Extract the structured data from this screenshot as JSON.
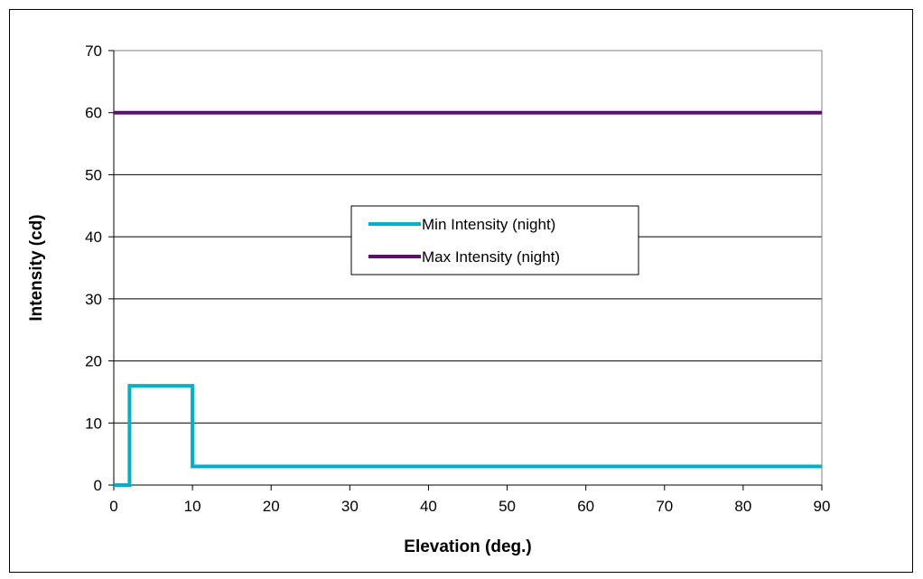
{
  "chart_data": {
    "type": "line",
    "title": "",
    "xlabel": "Elevation (deg.)",
    "ylabel": "Intensity (cd)",
    "xlim": [
      0,
      90
    ],
    "ylim": [
      0,
      70
    ],
    "x_ticks": [
      0,
      10,
      20,
      30,
      40,
      50,
      60,
      70,
      80,
      90
    ],
    "y_ticks": [
      0,
      10,
      20,
      30,
      40,
      50,
      60,
      70
    ],
    "grid": "horizontal",
    "legend_position": "center",
    "series": [
      {
        "name": "Min Intensity (night)",
        "color": "#00b0c8",
        "points": [
          [
            0,
            0
          ],
          [
            2,
            0
          ],
          [
            2,
            16
          ],
          [
            10,
            16
          ],
          [
            10,
            3
          ],
          [
            90,
            3
          ]
        ]
      },
      {
        "name": "Max Intensity (night)",
        "color": "#5a1070",
        "points": [
          [
            0,
            60
          ],
          [
            90,
            60
          ]
        ]
      }
    ]
  }
}
